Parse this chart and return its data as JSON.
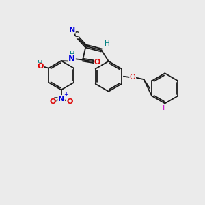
{
  "bg_color": "#ebebeb",
  "bond_color": "#1a1a1a",
  "atom_colors": {
    "N": "#0000dd",
    "O": "#dd0000",
    "F": "#cc00cc",
    "H": "#008080",
    "C": "#1a1a1a"
  },
  "figsize": [
    3.0,
    3.0
  ],
  "dpi": 100
}
